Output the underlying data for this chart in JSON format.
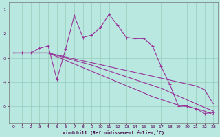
{
  "xlabel": "Windchill (Refroidissement éolien,°C)",
  "x_values": [
    0,
    1,
    2,
    3,
    4,
    5,
    6,
    7,
    8,
    9,
    10,
    11,
    12,
    13,
    14,
    15,
    16,
    17,
    18,
    19,
    20,
    21,
    22,
    23
  ],
  "line1_y": [
    -2.8,
    -2.8,
    -2.8,
    -2.6,
    -2.5,
    -3.9,
    -2.65,
    -1.25,
    -2.15,
    -2.05,
    -1.75,
    -1.2,
    -1.65,
    -2.15,
    -2.2,
    -2.2,
    -2.5,
    -3.35,
    -4.1,
    -5.0,
    -5.0,
    -5.1,
    -5.3,
    -5.25
  ],
  "line2_y": [
    -2.8,
    -2.8,
    -2.8,
    -2.8,
    -2.8,
    -2.88,
    -2.96,
    -3.04,
    -3.12,
    -3.2,
    -3.28,
    -3.36,
    -3.44,
    -3.52,
    -3.6,
    -3.68,
    -3.76,
    -3.84,
    -3.92,
    -4.0,
    -4.08,
    -4.16,
    -4.32,
    -4.9
  ],
  "line3_y": [
    -2.8,
    -2.8,
    -2.8,
    -2.8,
    -2.8,
    -2.9,
    -3.0,
    -3.1,
    -3.2,
    -3.3,
    -3.42,
    -3.54,
    -3.66,
    -3.78,
    -3.9,
    -4.02,
    -4.14,
    -4.26,
    -4.42,
    -4.58,
    -4.74,
    -4.9,
    -5.05,
    -5.2
  ],
  "line4_y": [
    -2.8,
    -2.8,
    -2.8,
    -2.8,
    -2.8,
    -2.95,
    -3.1,
    -3.25,
    -3.4,
    -3.55,
    -3.7,
    -3.85,
    -4.0,
    -4.15,
    -4.3,
    -4.45,
    -4.6,
    -4.72,
    -4.84,
    -4.96,
    -5.0,
    -5.1,
    -5.2,
    -5.35
  ],
  "line_color": "#993399",
  "bg_color": "#b8e8e0",
  "grid_color": "#99ccbb",
  "ylim": [
    -5.7,
    -0.7
  ],
  "xlim": [
    -0.5,
    23.5
  ],
  "yticks": [
    -5,
    -4,
    -3,
    -2,
    -1
  ],
  "xticks": [
    0,
    1,
    2,
    3,
    4,
    5,
    6,
    7,
    8,
    9,
    10,
    11,
    12,
    13,
    14,
    15,
    16,
    17,
    18,
    19,
    20,
    21,
    22,
    23
  ]
}
